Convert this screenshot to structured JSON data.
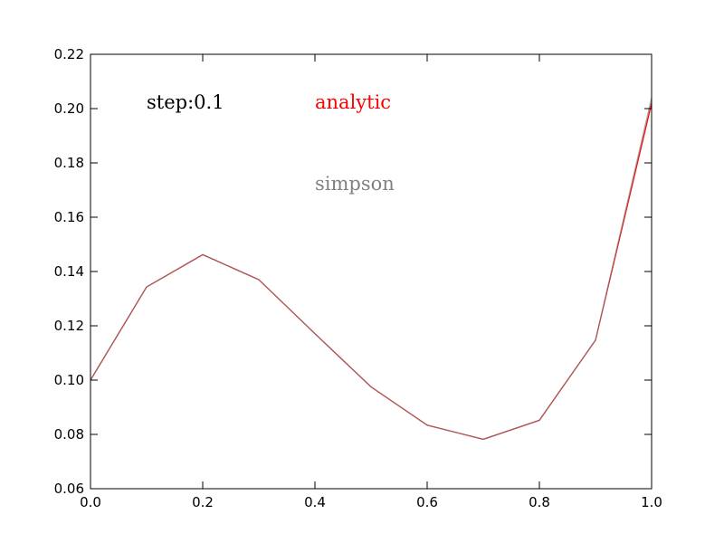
{
  "chart_data": {
    "type": "line",
    "xlim": [
      0.0,
      1.0
    ],
    "ylim": [
      0.06,
      0.22
    ],
    "x_ticks": [
      "0.0",
      "0.2",
      "0.4",
      "0.6",
      "0.8",
      "1.0"
    ],
    "y_ticks": [
      "0.06",
      "0.08",
      "0.10",
      "0.12",
      "0.14",
      "0.16",
      "0.18",
      "0.20",
      "0.22"
    ],
    "grid": false,
    "series": [
      {
        "name": "analytic",
        "color": "#ff0000",
        "x": [
          0.0,
          0.1,
          0.2,
          0.3,
          0.4,
          0.5,
          0.6,
          0.7,
          0.8,
          0.9,
          1.0
        ],
        "y": [
          0.1,
          0.1343,
          0.1462,
          0.137,
          0.1171,
          0.0975,
          0.0834,
          0.0782,
          0.0852,
          0.1147,
          0.202
        ]
      },
      {
        "name": "simpson",
        "color": "#808080",
        "x": [
          0.0,
          0.1,
          0.2,
          0.3,
          0.4,
          0.5,
          0.6,
          0.7,
          0.8,
          0.9,
          1.0
        ],
        "y": [
          0.1,
          0.1343,
          0.1462,
          0.137,
          0.1171,
          0.0975,
          0.0834,
          0.0782,
          0.0852,
          0.1147,
          0.204
        ]
      }
    ],
    "annotations": [
      {
        "text": "step:0.1",
        "color": "#000000",
        "x": 0.1,
        "y": 0.2
      },
      {
        "text": "analytic",
        "color": "#ff0000",
        "x": 0.4,
        "y": 0.2
      },
      {
        "text": "simpson",
        "color": "#808080",
        "x": 0.4,
        "y": 0.17
      }
    ]
  }
}
